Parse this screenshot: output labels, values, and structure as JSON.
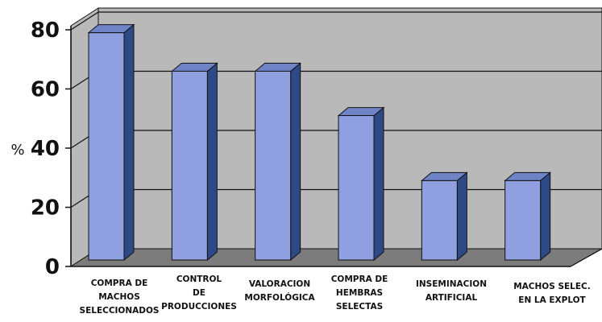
{
  "chart_data": {
    "type": "bar",
    "title": "",
    "xlabel": "",
    "ylabel": "%",
    "ylim": [
      0,
      80
    ],
    "yticks": [
      0,
      20,
      40,
      60,
      80
    ],
    "grid": true,
    "categories": [
      [
        "COMPRA DE",
        "MACHOS",
        "SELECCIONADOS"
      ],
      [
        "CONTROL",
        "DE",
        "PRODUCCIONES"
      ],
      [
        "VALORACION",
        "MORFOLÓGICA"
      ],
      [
        "COMPRA DE",
        "HEMBRAS",
        "SELECTAS"
      ],
      [
        "INSEMINACION",
        "ARTIFICIAL"
      ],
      [
        "MACHOS SELEC.",
        "EN LA EXPLOT"
      ]
    ],
    "values": [
      79,
      66,
      66,
      51,
      29,
      29
    ],
    "colors": {
      "bar_front": "#8f9fdf",
      "bar_side": "#2e4a86",
      "bar_top": "#6f83c7",
      "bar_edge": "#111111",
      "wall": "#b9b9b9",
      "floor": "#7c7c7c",
      "grid": "#111111"
    }
  }
}
